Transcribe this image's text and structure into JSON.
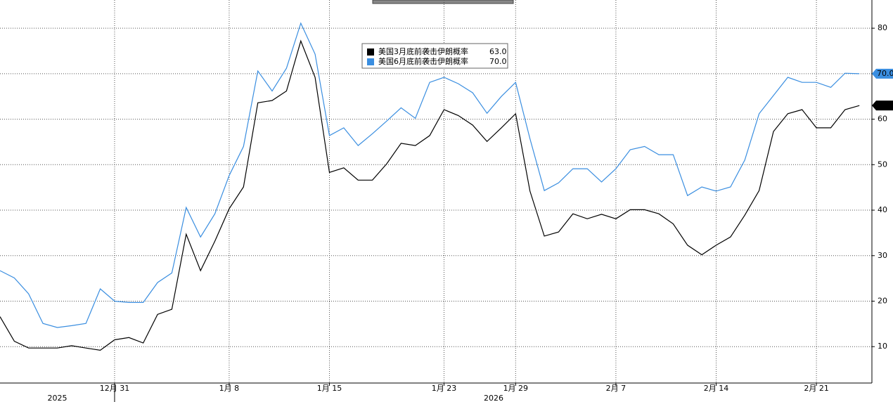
{
  "chart_data": {
    "type": "line",
    "categories": [
      null,
      null,
      null,
      null,
      null,
      null,
      null,
      null,
      "12月 31",
      null,
      null,
      null,
      null,
      null,
      null,
      null,
      "1月 8",
      null,
      null,
      null,
      null,
      null,
      null,
      "1月 15",
      null,
      null,
      null,
      null,
      null,
      null,
      null,
      "1月 23",
      null,
      null,
      null,
      null,
      "1月 29",
      null,
      null,
      null,
      null,
      null,
      null,
      "2月 7",
      null,
      null,
      null,
      null,
      null,
      null,
      "2月 14",
      null,
      null,
      null,
      null,
      null,
      null,
      "2月 21",
      null,
      null,
      null
    ],
    "years": [
      "2025",
      "2026"
    ],
    "series": [
      {
        "name": "美国3月底前袭击伊朗概率",
        "color": "#000000",
        "values": [
          16.6,
          11.2,
          9.7,
          9.7,
          9.7,
          10.2,
          9.7,
          9.2,
          11.5,
          12,
          10.8,
          17.1,
          18.2,
          34.7,
          26.7,
          33.2,
          40.3,
          45.1,
          63.6,
          64.1,
          66.2,
          77.2,
          69.2,
          48.3,
          49.3,
          46.6,
          46.6,
          50.2,
          54.7,
          54.2,
          56.4,
          62.1,
          60.8,
          58.7,
          55.1,
          58.1,
          61.2,
          44.2,
          34.3,
          35.2,
          39.2,
          38.1,
          39.1,
          38.1,
          40.1,
          40.1,
          39.2,
          37,
          32.3,
          30.2,
          32.3,
          34.1,
          38.9,
          44.3,
          57.3,
          61.2,
          62.1,
          58.1,
          58.1,
          62.1,
          63
        ],
        "value_labels": [
          null,
          null,
          null,
          null,
          null,
          null,
          null,
          null,
          null,
          null,
          null,
          null,
          null,
          null,
          null,
          null,
          null,
          null,
          null,
          null,
          null,
          null,
          null,
          null,
          null,
          null,
          null,
          null,
          null,
          null,
          null,
          null,
          null,
          null,
          null,
          null,
          null,
          null,
          null,
          null,
          null,
          null,
          null,
          null,
          null,
          null,
          null,
          null,
          null,
          null,
          null,
          null,
          null,
          null,
          null,
          null,
          null,
          null,
          null,
          null,
          "63.0"
        ]
      },
      {
        "name": "美国6月底前袭击伊朗概率",
        "color": "#3a8ee0",
        "values": [
          26.7,
          25.1,
          21.6,
          15.1,
          14.2,
          14.6,
          15.1,
          22.7,
          20,
          19.7,
          19.7,
          24.1,
          26.2,
          40.6,
          34.1,
          39.2,
          47.6,
          54,
          70.6,
          66.2,
          71.2,
          81.1,
          74.3,
          56.4,
          58.1,
          54.2,
          56.8,
          59.6,
          62.5,
          60.2,
          68.1,
          69.2,
          67.8,
          65.8,
          61.3,
          65,
          68.1,
          55.7,
          44.3,
          46,
          49.1,
          49.1,
          46.2,
          49.1,
          53.3,
          54,
          52.2,
          52.2,
          43.2,
          45.1,
          44.2,
          45.1,
          51,
          61.2,
          65.2,
          69.2,
          68.1,
          68.1,
          67,
          70.1,
          70
        ],
        "value_labels": [
          null,
          null,
          null,
          null,
          null,
          null,
          null,
          null,
          null,
          null,
          null,
          null,
          null,
          null,
          null,
          null,
          null,
          null,
          null,
          null,
          null,
          null,
          null,
          null,
          null,
          null,
          null,
          null,
          null,
          null,
          null,
          null,
          null,
          null,
          null,
          null,
          null,
          null,
          null,
          null,
          null,
          null,
          null,
          null,
          null,
          null,
          null,
          null,
          null,
          null,
          null,
          null,
          null,
          null,
          null,
          null,
          null,
          null,
          null,
          null,
          "70.0"
        ]
      }
    ],
    "ylim": [
      2,
      86.2
    ],
    "yticks": [
      10,
      20,
      30,
      40,
      50,
      60,
      70,
      80
    ],
    "grid": true
  }
}
